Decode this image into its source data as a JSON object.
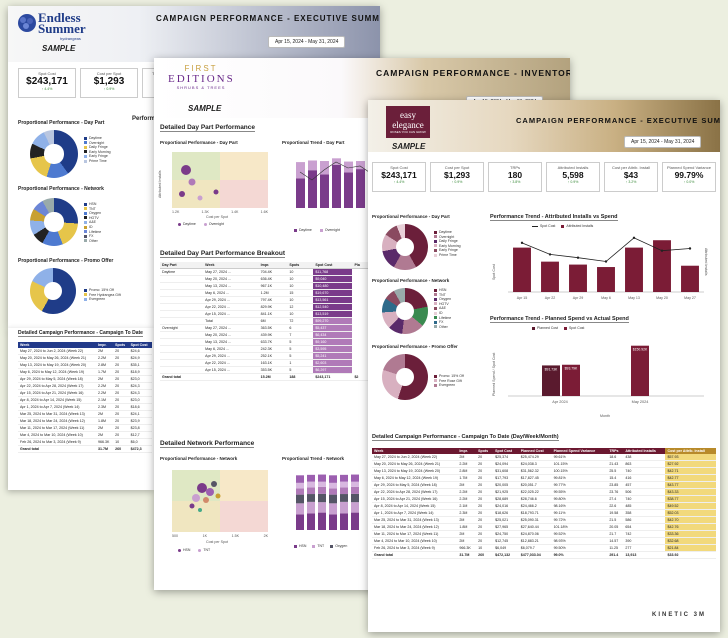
{
  "card1": {
    "logo": {
      "text": "Endless Summer",
      "sub": "hydrangeas"
    },
    "sample": "SAMPLE",
    "title": "CAMPAIGN PERFORMANCE - EXECUTIVE SUMMARY",
    "date_range": "Apr 15, 2024 - May 31, 2024",
    "kpis": [
      {
        "label": "Spot Cost",
        "value": "$243,171",
        "delta": "↑ 4.4%"
      },
      {
        "label": "Cost per Spot",
        "value": "$1,293",
        "delta": "↑ 0.9%"
      },
      {
        "label": "TRPs",
        "value": "1",
        "delta": ""
      }
    ],
    "sec_daypart": "Proportional Performance - Day Part",
    "sec_network": "Proportional Performance - Network",
    "sec_promo": "Proportional Performance - Promo Offer",
    "sec_trend": "Performa",
    "daypart_legend": [
      "Daytime",
      "Overnight",
      "Daily Fringe",
      "Early Morning",
      "Early Fringe",
      "Prime Time"
    ],
    "network_legend": [
      "HSN",
      "TNT",
      "Oxygen",
      "HGTV",
      "A&E",
      "ID",
      "Lifetime",
      "FX",
      "Other"
    ],
    "promo_legend": [
      "Promo: 15% Off",
      "Free Hydrangea Gift",
      "Evergreen"
    ],
    "table_title": "Detailed Campaign Performance - Campaign To Date",
    "table_headers": [
      "Week",
      "Impr.",
      "Spots",
      "Spot Cost"
    ],
    "table_rows": [
      [
        "May 27, 2024 to Jun 2, 2024 (Week 22)",
        "2M",
        "20",
        "$24,6"
      ],
      [
        "May 20, 2024 to May 26, 2024 (Week 21)",
        "2.2M",
        "20",
        "$24,9"
      ],
      [
        "May 13, 2024 to May 19, 2024 (Week 20)",
        "2.8M",
        "20",
        "$35,1"
      ],
      [
        "May 6, 2024 to May 12, 2024 (Week 19)",
        "1.7M",
        "20",
        "$18,9"
      ],
      [
        "Apr 29, 2024 to May 5, 2024 (Week 18)",
        "2M",
        "20",
        "$23,0"
      ],
      [
        "Apr 22, 2024 to Apr 28, 2024 (Week 17)",
        "2.2M",
        "20",
        "$24,3"
      ],
      [
        "Apr 15, 2024 to Apr 21, 2024 (Week 16)",
        "2.2M",
        "20",
        "$24,3"
      ],
      [
        "Apr 8, 2024 to Apr 14, 2024 (Week 15)",
        "2.1M",
        "20",
        "$23,0"
      ],
      [
        "Apr 1, 2024 to Apr 7, 2024 (Week 14)",
        "2.3M",
        "20",
        "$18,6"
      ],
      [
        "Mar 25, 2024 to Mar 31, 2024 (Week 13)",
        "2M",
        "20",
        "$24,1"
      ],
      [
        "Mar 18, 2024 to Mar 24, 2024 (Week 12)",
        "1.8M",
        "20",
        "$23,9"
      ],
      [
        "Mar 11, 2024 to Mar 17, 2024 (Week 11)",
        "2M",
        "20",
        "$23,8"
      ],
      [
        "Mar 4, 2024 to Mar 10, 2024 (Week 10)",
        "2M",
        "20",
        "$12,7"
      ],
      [
        "Feb 26, 2024 to Mar 3, 2024 (Week 9)",
        "966.3K",
        "10",
        "$6,0"
      ]
    ],
    "total_row": [
      "Grand total",
      "31.7M",
      "260",
      "$472,3"
    ]
  },
  "card2": {
    "logo": {
      "a": "FIRST",
      "b": "EDITIONS",
      "c": "SHRUBS & TREES"
    },
    "sample": "SAMPLE",
    "title": "CAMPAIGN PERFORMANCE - INVENTORY",
    "date_range": "Apr 15, 2024 - May 31, 2024",
    "sec_daypart": "Detailed Day Part Performance",
    "sub_prop": "Proportional Performance - Day Part",
    "sub_trend": "Proportional Trend - Day Part",
    "scatter_y": "Attributed Installs",
    "scatter_x": "Cost per Spot",
    "scatter_xticks": [
      "1.2K",
      "1.3K",
      "1.4K",
      "1.6K"
    ],
    "scatter_legend": [
      "Daytime",
      "Overnight"
    ],
    "trend_legend": [
      "Daytime",
      "Overnight"
    ],
    "breakout_title": "Detailed Day Part Performance Breakout",
    "breakout_headers": [
      "Day Part",
      "Week",
      "Impr.",
      "Spots",
      "Spot Cost",
      "Pla"
    ],
    "breakout_rows": [
      [
        "Daytime",
        "May 27, 2024 ...",
        "704.4K",
        "10",
        "$11,768"
      ],
      [
        "",
        "May 20, 2024 ...",
        "636.4K",
        "10",
        "$9,040"
      ],
      [
        "",
        "May 13, 2024 ...",
        "967.1K",
        "10",
        "$10,480"
      ],
      [
        "",
        "May 6, 2024 ...",
        "1.2M",
        "15",
        "$19,670"
      ],
      [
        "",
        "Apr 29, 2024 ...",
        "797.4K",
        "10",
        "$13,561"
      ],
      [
        "",
        "Apr 22, 2024 ...",
        "829.9K",
        "12",
        "$12,540"
      ],
      [
        "",
        "Apr 15, 2024 ...",
        "841.1K",
        "10",
        "$13,519"
      ],
      [
        "",
        "Total",
        "6M",
        "72",
        "$99,270"
      ],
      [
        "Overnight",
        "May 27, 2024 ...",
        "363.5K",
        "6",
        "$5,437"
      ],
      [
        "",
        "May 20, 2024 ...",
        "439.9K",
        "7",
        "$6,434"
      ],
      [
        "",
        "May 13, 2024 ...",
        "633.7K",
        "5",
        "$9,160"
      ],
      [
        "",
        "May 6, 2024 ...",
        "242.3K",
        "5",
        "$3,595"
      ],
      [
        "",
        "Apr 29, 2024 ...",
        "252.1K",
        "5",
        "$5,241"
      ],
      [
        "",
        "Apr 22, 2024 ...",
        "163.1K",
        "1",
        "$2,603"
      ],
      [
        "",
        "Apr 15, 2024 ...",
        "353.5K",
        "5",
        "$6,297"
      ]
    ],
    "breakout_total": [
      "Grand total",
      "",
      "15.2M",
      "188",
      "$243,171",
      "$2"
    ],
    "sec_network": "Detailed Network Performance",
    "net_prop": "Proportional Performance - Network",
    "net_trend": "Proportional Trend - Network",
    "net_xticks": [
      "500",
      "1K",
      "1.5K",
      "2K"
    ],
    "net_legend": [
      "HSN",
      "TNT"
    ],
    "net_trend_legend": [
      "HSN",
      "TNT",
      "Oxygen"
    ]
  },
  "card3": {
    "logo": {
      "a": "easy elegance",
      "b": "ROSES YOU CAN GROW"
    },
    "sample": "SAMPLE",
    "title": "CAMPAIGN PERFORMANCE - EXECUTIVE SUMMARY",
    "date_range": "Apr 15, 2024 - May 31, 2024",
    "kpis": [
      {
        "label": "Spot Cost",
        "value": "$243,171",
        "delta": "↑ 4.4%"
      },
      {
        "label": "Cost per Spot",
        "value": "$1,293",
        "delta": "↑ 0.9%"
      },
      {
        "label": "TRPs",
        "value": "180",
        "delta": "↑ 3.8%"
      },
      {
        "label": "Attributed Installs",
        "value": "5,598",
        "delta": "↑ 0.9%"
      },
      {
        "label": "Cost per Attrib. Install",
        "value": "$43",
        "delta": "↑ 3.2%"
      },
      {
        "label": "Planned Spend Variance",
        "value": "99.79%",
        "delta": "↑ 0.0%"
      }
    ],
    "sec_daypart": "Proportional Performance - Day Part",
    "sec_network": "Proportional Performance - Network",
    "sec_promo": "Proportional Performance - Promo Offer",
    "daypart_legend": [
      "Daytime",
      "Overnight",
      "Daily Fringe",
      "Early Morning",
      "Early Fringe",
      "Prime Time"
    ],
    "network_legend": [
      "HSN",
      "TNT",
      "Oxygen",
      "HGTV",
      "A&E",
      "ID",
      "Lifetime",
      "FX",
      "Other"
    ],
    "promo_legend": [
      "Promo: 15% Off",
      "Free Rose Gift",
      "Evergreen"
    ],
    "trend1_title": "Performance Trend - Attributed Installs vs Spend",
    "trend1_legend": [
      "Spot Cost",
      "Attributed Installs"
    ],
    "trend1_ylabel": "Spot Cost",
    "trend1_y2label": "Attributed Installs",
    "trend2_title": "Performance Trend - Planned Spend vs Actual Spend",
    "trend2_legend": [
      "Planned Cost",
      "Spot Cost"
    ],
    "trend2_ylabel": "Planned Spend / Spot Cost",
    "trend2_xlabel": "Month",
    "table_title": "Detailed Campaign Performance - Campaign To Date (Day/Week/Month)",
    "table_headers": [
      "Week",
      "Impr.",
      "Spots",
      "Spot Cost",
      "Planned Cost",
      "Planned Spend Variance",
      "TRPs",
      "Attributed Installs",
      "Cost per Attrib. Install"
    ],
    "table_rows": [
      [
        "May 27, 2024 to Jun 2, 2024 (Week 22)",
        "2M",
        "20",
        "$25,374",
        "$25,474.29",
        "99.61%",
        "18.6",
        "438",
        "$57.93"
      ],
      [
        "May 20, 2024 to May 26, 2024 (Week 21)",
        "2.2M",
        "20",
        "$24,094",
        "$24,038.3",
        "101.15%",
        "21.43",
        "863",
        "$27.92"
      ],
      [
        "May 13, 2024 to May 19, 2024 (Week 20)",
        "2.8M",
        "20",
        "$31,608",
        "$31,562.32",
        "100.15%",
        "25.5",
        "740",
        "$42.71"
      ],
      [
        "May 6, 2024 to May 12, 2024 (Week 19)",
        "1.7M",
        "20",
        "$17,793",
        "$17,827.45",
        "99.81%",
        "15.4",
        "416",
        "$42.77"
      ],
      [
        "Apr 29, 2024 to May 5, 2024 (Week 18)",
        "2M",
        "20",
        "$20,005",
        "$20,051.7",
        "99.77%",
        "23.85",
        "457",
        "$43.77"
      ],
      [
        "Apr 22, 2024 to Apr 28, 2024 (Week 17)",
        "2.2M",
        "20",
        "$21,925",
        "$22,025.22",
        "99.55%",
        "23.76",
        "506",
        "$43.33"
      ],
      [
        "Apr 15, 2024 to Apr 21, 2024 (Week 16)",
        "2.2M",
        "20",
        "$28,689",
        "$28,746.6",
        "99.80%",
        "27.4",
        "740",
        "$38.77"
      ],
      [
        "Apr 8, 2024 to Apr 14, 2024 (Week 15)",
        "2.1M",
        "20",
        "$24,016",
        "$24,466.2",
        "98.16%",
        "22.6",
        "485",
        "$49.52"
      ],
      [
        "Apr 1, 2024 to Apr 7, 2024 (Week 14)",
        "2.3M",
        "20",
        "$18,626",
        "$18,793.71",
        "99.11%",
        "19.58",
        "358",
        "$52.03"
      ],
      [
        "Mar 25, 2024 to Mar 31, 2024 (Week 13)",
        "2M",
        "20",
        "$25,021",
        "$25,090.31",
        "99.72%",
        "21.5",
        "586",
        "$42.70"
      ],
      [
        "Mar 18, 2024 to Mar 24, 2024 (Week 12)",
        "1.8M",
        "20",
        "$27,965",
        "$27,640.44",
        "101.18%",
        "20.05",
        "654",
        "$42.76"
      ],
      [
        "Mar 11, 2024 to Mar 17, 2024 (Week 11)",
        "2M",
        "20",
        "$24,750",
        "$24,870.06",
        "99.52%",
        "21.7",
        "742",
        "$33.36"
      ],
      [
        "Mar 4, 2024 to Mar 10, 2024 (Week 10)",
        "2M",
        "20",
        "$12,745",
        "$12,883.21",
        "98.93%",
        "14.57",
        "390",
        "$32.68"
      ],
      [
        "Feb 26, 2024 to Mar 3, 2024 (Week 9)",
        "966.3K",
        "10",
        "$6,049",
        "$6,079.7",
        "99.50%",
        "11.25",
        "277",
        "$21.84"
      ]
    ],
    "total_row": [
      "Grand total",
      "31.7M",
      "260",
      "$472,132",
      "$477,033.04",
      "99.0%",
      "291.4",
      "13,913",
      "$33.92"
    ],
    "footer": "KINETIC 3M"
  },
  "chart_data": [
    {
      "type": "bar",
      "title": "Performance Trend - Attributed Installs vs Spend",
      "categories": [
        "Apr 15",
        "Apr 22",
        "Apr 29",
        "May 6",
        "May 13",
        "May 20",
        "May 27"
      ],
      "series": [
        {
          "name": "Spot Cost",
          "values": [
            28689,
            21925,
            20005,
            17793,
            31608,
            24094,
            25374
          ]
        },
        {
          "name": "Attributed Installs",
          "values": [
            740,
            506,
            457,
            416,
            740,
            863,
            438
          ]
        }
      ],
      "colors": {
        "bar": "#7b1c36",
        "line": "#222222"
      }
    },
    {
      "type": "bar",
      "title": "Performance Trend - Planned Spend vs Actual Spend",
      "categories": [
        "Apr 2024",
        "May 2024"
      ],
      "series": [
        {
          "name": "Planned Cost",
          "values": [
            91726,
            108254
          ]
        },
        {
          "name": "Spot Cost",
          "values": [
            93786,
            150924
          ]
        }
      ],
      "data_labels": [
        "$91.73K",
        "$93.79K",
        "$150.92K"
      ],
      "colors": {
        "planned": "#5a1a2e",
        "spot": "#7b1c36"
      }
    }
  ]
}
